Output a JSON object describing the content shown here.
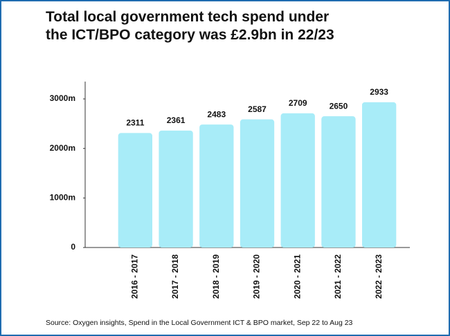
{
  "chart_data": {
    "type": "bar",
    "title": "Total local government tech spend under the ICT/BPO category was £2.9bn in 22/23",
    "categories": [
      "2016 - 2017",
      "2017 - 2018",
      "2018 - 2019",
      "2019 - 2020",
      "2020 - 2021",
      "2021 - 2022",
      "2022 - 2023"
    ],
    "values": [
      2311,
      2361,
      2483,
      2587,
      2709,
      2650,
      2933
    ],
    "color": "#a8ecf8",
    "ylim": [
      0,
      3350
    ],
    "yticks": [
      0,
      {
        "value": 1000,
        "label": "1000m"
      },
      {
        "value": 2000,
        "label": "2000m"
      },
      {
        "value": 3000,
        "label": "3000m"
      }
    ],
    "grid": false,
    "source": "Source: Oxygen insights, Spend in the Local Government ICT & BPO market, Sep 22 to Aug 23"
  }
}
